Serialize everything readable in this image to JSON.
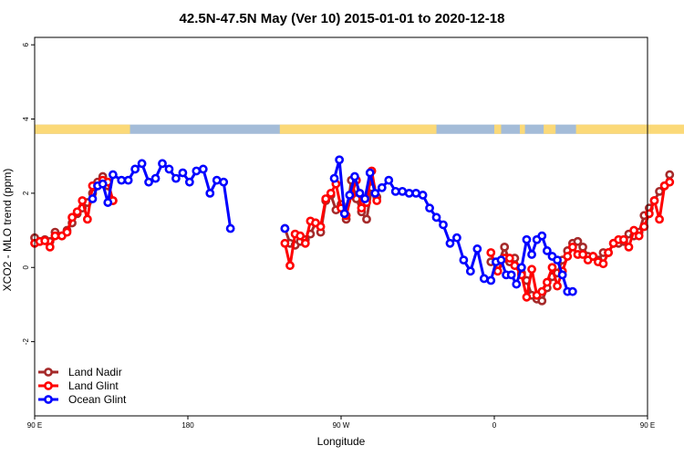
{
  "chart_data": {
    "type": "line",
    "title": "42.5N-47.5N May (Ver 10)   2015-01-01 to 2020-12-18",
    "xlabel": "Longitude",
    "ylabel": "XCO2 - MLO trend (ppm)",
    "xlim": [
      90,
      450
    ],
    "ylim": [
      -4,
      6.2
    ],
    "x_ticks": [
      {
        "value": 90,
        "label": "90 E"
      },
      {
        "value": 180,
        "label": "180"
      },
      {
        "value": 270,
        "label": "90 W"
      },
      {
        "value": 360,
        "label": "0"
      },
      {
        "value": 450,
        "label": "90 E"
      },
      {
        "value": 540,
        "label": "180"
      }
    ],
    "y_ticks": [
      {
        "value": -2,
        "label": "-2"
      },
      {
        "value": 0,
        "label": "0"
      },
      {
        "value": 2,
        "label": "2"
      },
      {
        "value": 4,
        "label": "4"
      },
      {
        "value": 6,
        "label": "6"
      }
    ],
    "land_ocean_band": {
      "y_range": [
        3.6,
        3.85
      ],
      "land_color": "#fbd978",
      "ocean_color": "#a4bcd8",
      "land_segments": [
        [
          90,
          146
        ],
        [
          234,
          326
        ],
        [
          360,
          364
        ],
        [
          375,
          378
        ],
        [
          389,
          396
        ],
        [
          408,
          476
        ]
      ]
    },
    "legend_position": "bottom-left",
    "series": [
      {
        "name": "Land Nadir",
        "color": "#a52a2a",
        "points": [
          [
            90,
            0.8
          ],
          [
            93,
            0.7
          ],
          [
            96,
            0.75
          ],
          [
            99,
            0.7
          ],
          [
            102,
            0.95
          ],
          [
            106,
            0.85
          ],
          [
            109,
            1.0
          ],
          [
            112,
            1.2
          ],
          [
            115,
            1.45
          ],
          [
            118,
            1.6
          ],
          [
            121,
            1.75
          ],
          [
            124,
            2.0
          ],
          [
            127,
            2.3
          ],
          [
            130,
            2.45
          ],
          [
            133,
            2.2
          ],
          [
            136,
            1.8
          ],
          [
            237,
            1.05
          ],
          [
            240,
            0.65
          ],
          [
            243,
            0.6
          ],
          [
            246,
            0.7
          ],
          [
            249,
            0.75
          ],
          [
            252,
            0.9
          ],
          [
            255,
            1.2
          ],
          [
            258,
            0.95
          ],
          [
            261,
            1.8
          ],
          [
            264,
            1.95
          ],
          [
            267,
            1.55
          ],
          [
            270,
            1.7
          ],
          [
            273,
            1.3
          ],
          [
            276,
            2.35
          ],
          [
            279,
            1.85
          ],
          [
            282,
            1.5
          ],
          [
            285,
            1.3
          ],
          [
            288,
            2.15
          ],
          [
            291,
            1.9
          ],
          [
            358,
            0.15
          ],
          [
            362,
            0.05
          ],
          [
            366,
            0.55
          ],
          [
            369,
            0.15
          ],
          [
            372,
            0.25
          ],
          [
            376,
            -0.15
          ],
          [
            379,
            -0.35
          ],
          [
            382,
            -0.75
          ],
          [
            385,
            -0.85
          ],
          [
            388,
            -0.9
          ],
          [
            391,
            -0.55
          ],
          [
            394,
            -0.25
          ],
          [
            397,
            -0.15
          ],
          [
            400,
            0.2
          ],
          [
            403,
            0.45
          ],
          [
            406,
            0.65
          ],
          [
            409,
            0.7
          ],
          [
            412,
            0.55
          ],
          [
            415,
            0.3
          ],
          [
            418,
            0.3
          ],
          [
            421,
            0.2
          ],
          [
            424,
            0.4
          ],
          [
            427,
            0.4
          ],
          [
            430,
            0.65
          ],
          [
            433,
            0.65
          ],
          [
            436,
            0.7
          ],
          [
            439,
            0.9
          ],
          [
            442,
            0.85
          ],
          [
            445,
            0.95
          ],
          [
            448,
            1.4
          ],
          [
            451,
            1.6
          ],
          [
            454,
            1.8
          ],
          [
            457,
            2.05
          ],
          [
            460,
            2.2
          ],
          [
            463,
            2.5
          ]
        ]
      },
      {
        "name": "Land Glint",
        "color": "#ff0000",
        "points": [
          [
            90,
            0.65
          ],
          [
            93,
            0.7
          ],
          [
            96,
            0.72
          ],
          [
            99,
            0.55
          ],
          [
            102,
            0.85
          ],
          [
            106,
            0.85
          ],
          [
            109,
            0.95
          ],
          [
            112,
            1.35
          ],
          [
            115,
            1.5
          ],
          [
            118,
            1.8
          ],
          [
            121,
            1.3
          ],
          [
            124,
            2.2
          ],
          [
            127,
            2.2
          ],
          [
            130,
            2.35
          ],
          [
            133,
            2.3
          ],
          [
            136,
            1.8
          ],
          [
            237,
            0.65
          ],
          [
            240,
            0.05
          ],
          [
            243,
            0.9
          ],
          [
            246,
            0.85
          ],
          [
            249,
            0.65
          ],
          [
            252,
            1.25
          ],
          [
            255,
            1.2
          ],
          [
            258,
            1.1
          ],
          [
            261,
            1.85
          ],
          [
            264,
            2.0
          ],
          [
            267,
            2.25
          ],
          [
            270,
            1.6
          ],
          [
            273,
            1.4
          ],
          [
            276,
            1.95
          ],
          [
            279,
            2.35
          ],
          [
            282,
            1.6
          ],
          [
            285,
            1.75
          ],
          [
            288,
            2.6
          ],
          [
            291,
            1.8
          ],
          [
            358,
            0.4
          ],
          [
            362,
            -0.1
          ],
          [
            366,
            0.25
          ],
          [
            369,
            0.25
          ],
          [
            372,
            0.05
          ],
          [
            376,
            -0.2
          ],
          [
            379,
            -0.8
          ],
          [
            382,
            -0.05
          ],
          [
            385,
            -0.75
          ],
          [
            388,
            -0.65
          ],
          [
            391,
            -0.4
          ],
          [
            394,
            0.0
          ],
          [
            397,
            -0.5
          ],
          [
            400,
            -0.1
          ],
          [
            403,
            0.3
          ],
          [
            406,
            0.55
          ],
          [
            409,
            0.35
          ],
          [
            412,
            0.35
          ],
          [
            415,
            0.2
          ],
          [
            418,
            0.3
          ],
          [
            421,
            0.15
          ],
          [
            424,
            0.1
          ],
          [
            427,
            0.4
          ],
          [
            430,
            0.65
          ],
          [
            433,
            0.75
          ],
          [
            436,
            0.75
          ],
          [
            439,
            0.55
          ],
          [
            442,
            1.0
          ],
          [
            445,
            0.85
          ],
          [
            448,
            1.1
          ],
          [
            451,
            1.45
          ],
          [
            454,
            1.8
          ],
          [
            457,
            1.3
          ],
          [
            460,
            2.2
          ],
          [
            463,
            2.3
          ]
        ]
      },
      {
        "name": "Ocean Glint",
        "color": "#0000ff",
        "points": [
          [
            124,
            1.85
          ],
          [
            127,
            2.2
          ],
          [
            130,
            2.25
          ],
          [
            133,
            1.75
          ],
          [
            136,
            2.5
          ],
          [
            141,
            2.35
          ],
          [
            145,
            2.35
          ],
          [
            149,
            2.65
          ],
          [
            153,
            2.8
          ],
          [
            157,
            2.3
          ],
          [
            161,
            2.4
          ],
          [
            165,
            2.8
          ],
          [
            169,
            2.65
          ],
          [
            173,
            2.4
          ],
          [
            177,
            2.55
          ],
          [
            181,
            2.3
          ],
          [
            185,
            2.6
          ],
          [
            189,
            2.65
          ],
          [
            193,
            2.0
          ],
          [
            197,
            2.35
          ],
          [
            201,
            2.3
          ],
          [
            205,
            1.05
          ],
          [
            237,
            1.05
          ],
          [
            266,
            2.4
          ],
          [
            269,
            2.9
          ],
          [
            272,
            1.45
          ],
          [
            275,
            1.95
          ],
          [
            278,
            2.45
          ],
          [
            281,
            2.0
          ],
          [
            284,
            1.85
          ],
          [
            287,
            2.55
          ],
          [
            290,
            2.0
          ],
          [
            294,
            2.15
          ],
          [
            298,
            2.35
          ],
          [
            302,
            2.05
          ],
          [
            306,
            2.05
          ],
          [
            310,
            2.0
          ],
          [
            314,
            2.0
          ],
          [
            318,
            1.95
          ],
          [
            322,
            1.6
          ],
          [
            326,
            1.35
          ],
          [
            330,
            1.15
          ],
          [
            334,
            0.65
          ],
          [
            338,
            0.8
          ],
          [
            342,
            0.2
          ],
          [
            346,
            -0.1
          ],
          [
            350,
            0.5
          ],
          [
            354,
            -0.3
          ],
          [
            358,
            -0.35
          ],
          [
            361,
            0.15
          ],
          [
            364,
            0.2
          ],
          [
            367,
            -0.2
          ],
          [
            370,
            -0.2
          ],
          [
            373,
            -0.45
          ],
          [
            376,
            0.0
          ],
          [
            379,
            0.75
          ],
          [
            382,
            0.35
          ],
          [
            385,
            0.75
          ],
          [
            388,
            0.85
          ],
          [
            391,
            0.45
          ],
          [
            394,
            0.3
          ],
          [
            397,
            0.2
          ],
          [
            400,
            -0.2
          ],
          [
            403,
            -0.65
          ],
          [
            406,
            -0.65
          ]
        ]
      }
    ]
  }
}
